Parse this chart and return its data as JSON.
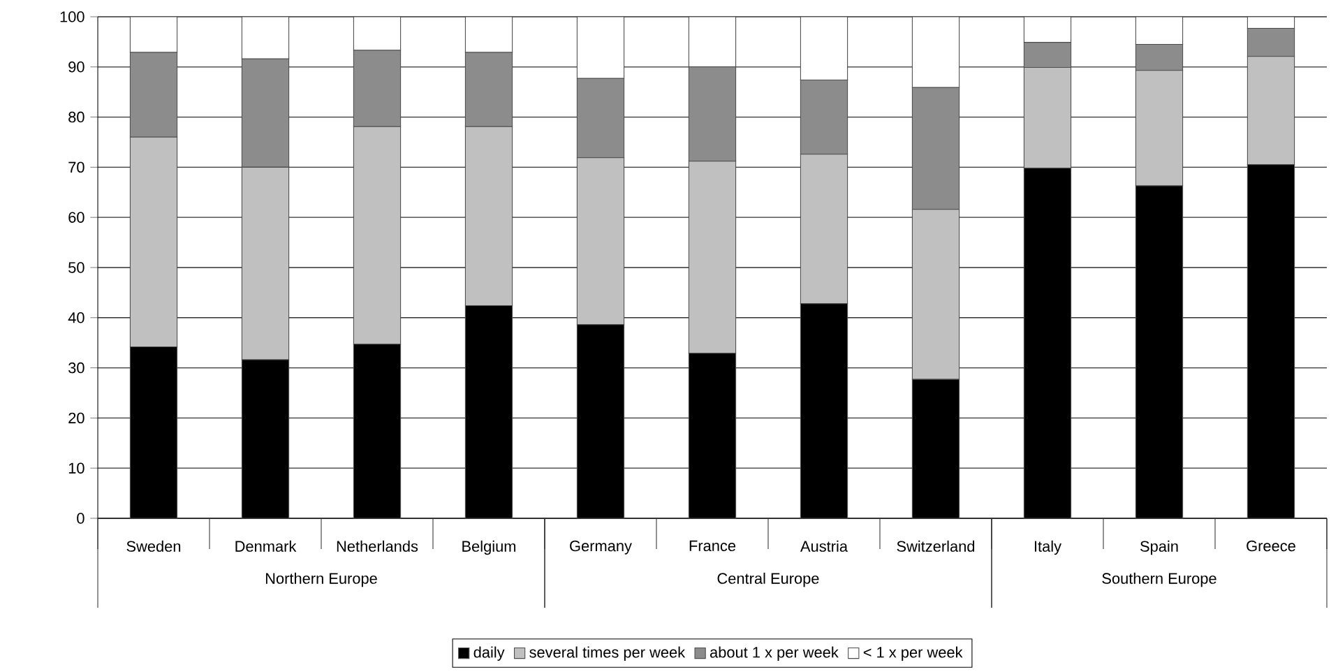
{
  "chart_data": {
    "type": "bar",
    "stacked": true,
    "categories": [
      "Sweden",
      "Denmark",
      "Netherlands",
      "Belgium",
      "Germany",
      "France",
      "Austria",
      "Switzerland",
      "Italy",
      "Spain",
      "Greece"
    ],
    "series": [
      {
        "name": "daily",
        "color": "#000000",
        "values": [
          34.2,
          31.6,
          34.7,
          42.4,
          38.6,
          32.9,
          42.8,
          27.7,
          69.8,
          66.3,
          70.5
        ]
      },
      {
        "name": "several times per week",
        "color": "#c0c0c0",
        "values": [
          41.8,
          38.4,
          43.4,
          35.7,
          33.3,
          38.3,
          29.8,
          33.9,
          20.1,
          23.0,
          21.6
        ]
      },
      {
        "name": "about 1 x per week",
        "color": "#8c8c8c",
        "values": [
          16.9,
          21.6,
          15.2,
          14.8,
          15.8,
          18.8,
          14.8,
          24.3,
          5.0,
          5.2,
          5.6
        ]
      },
      {
        "name": "< 1 x per week",
        "color": "#ffffff",
        "values": [
          7.1,
          8.4,
          6.7,
          7.1,
          12.3,
          10.0,
          12.6,
          14.1,
          5.1,
          5.5,
          2.3
        ]
      }
    ],
    "annotations": [
      "Northern Europe",
      "Central Europe",
      "Southern Europe"
    ],
    "ylim": [
      0,
      100
    ],
    "yticks": [
      0,
      10,
      20,
      30,
      40,
      50,
      60,
      70,
      80,
      90,
      100
    ],
    "grid": "y",
    "legend": "bottom"
  }
}
